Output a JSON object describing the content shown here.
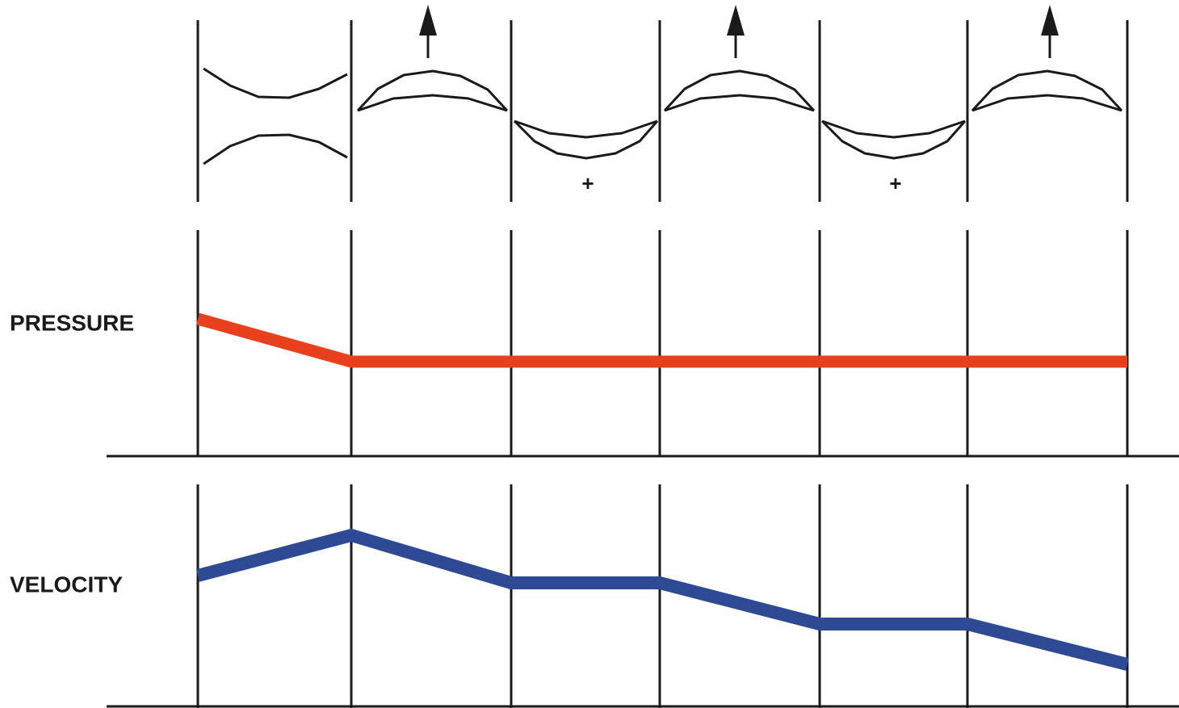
{
  "labels": {
    "pressure": "PRESSURE",
    "velocity": "VELOCITY"
  },
  "markers": [
    "+",
    "+"
  ]
}
